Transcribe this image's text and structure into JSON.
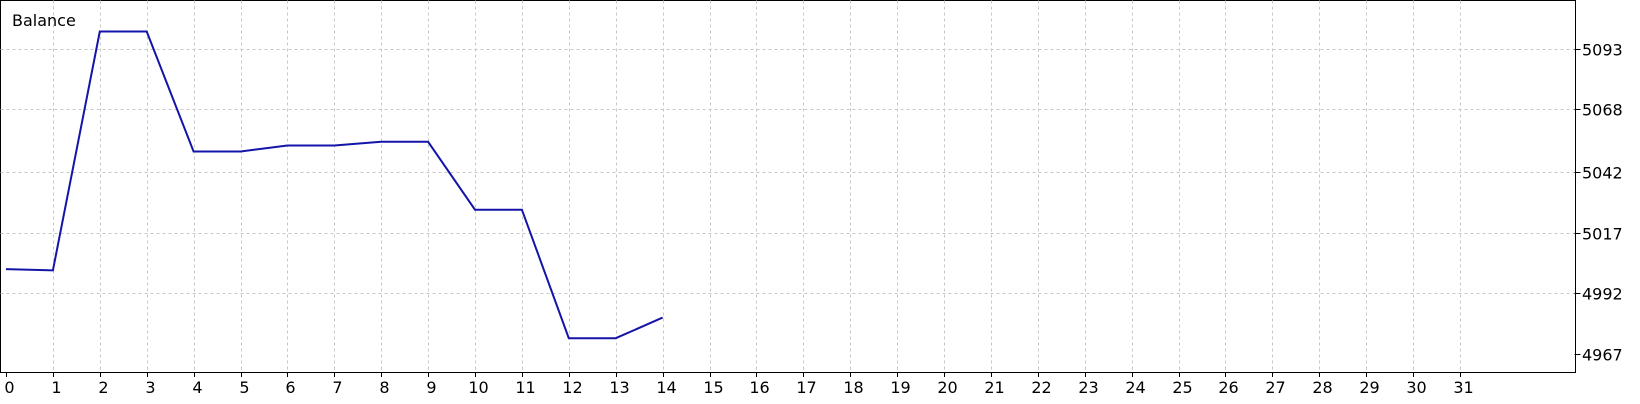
{
  "chart_data": {
    "type": "line",
    "title": "Balance",
    "x": [
      0,
      1,
      2,
      3,
      4,
      5,
      6,
      7,
      8,
      9,
      10,
      11,
      12,
      13,
      14
    ],
    "x_ticks": [
      "0",
      "1",
      "2",
      "3",
      "4",
      "5",
      "6",
      "7",
      "8",
      "9",
      "10",
      "11",
      "12",
      "13",
      "14",
      "15",
      "16",
      "17",
      "18",
      "19",
      "20",
      "21",
      "22",
      "23",
      "24",
      "25",
      "26",
      "27",
      "28",
      "29",
      "30",
      "31"
    ],
    "y_ticks": [
      "4967",
      "4992",
      "5017",
      "5042",
      "5068",
      "5093"
    ],
    "xlim": [
      0,
      31
    ],
    "ylim": [
      4967,
      5093
    ],
    "grid": true,
    "series": [
      {
        "values": [
          5002,
          5001.5,
          5100,
          5100,
          5050.5,
          5050.5,
          5053,
          5053,
          5054.5,
          5054.5,
          5026.5,
          5026.5,
          4973.5,
          4973.5,
          4982
        ],
        "color": "#1414a8"
      }
    ]
  }
}
